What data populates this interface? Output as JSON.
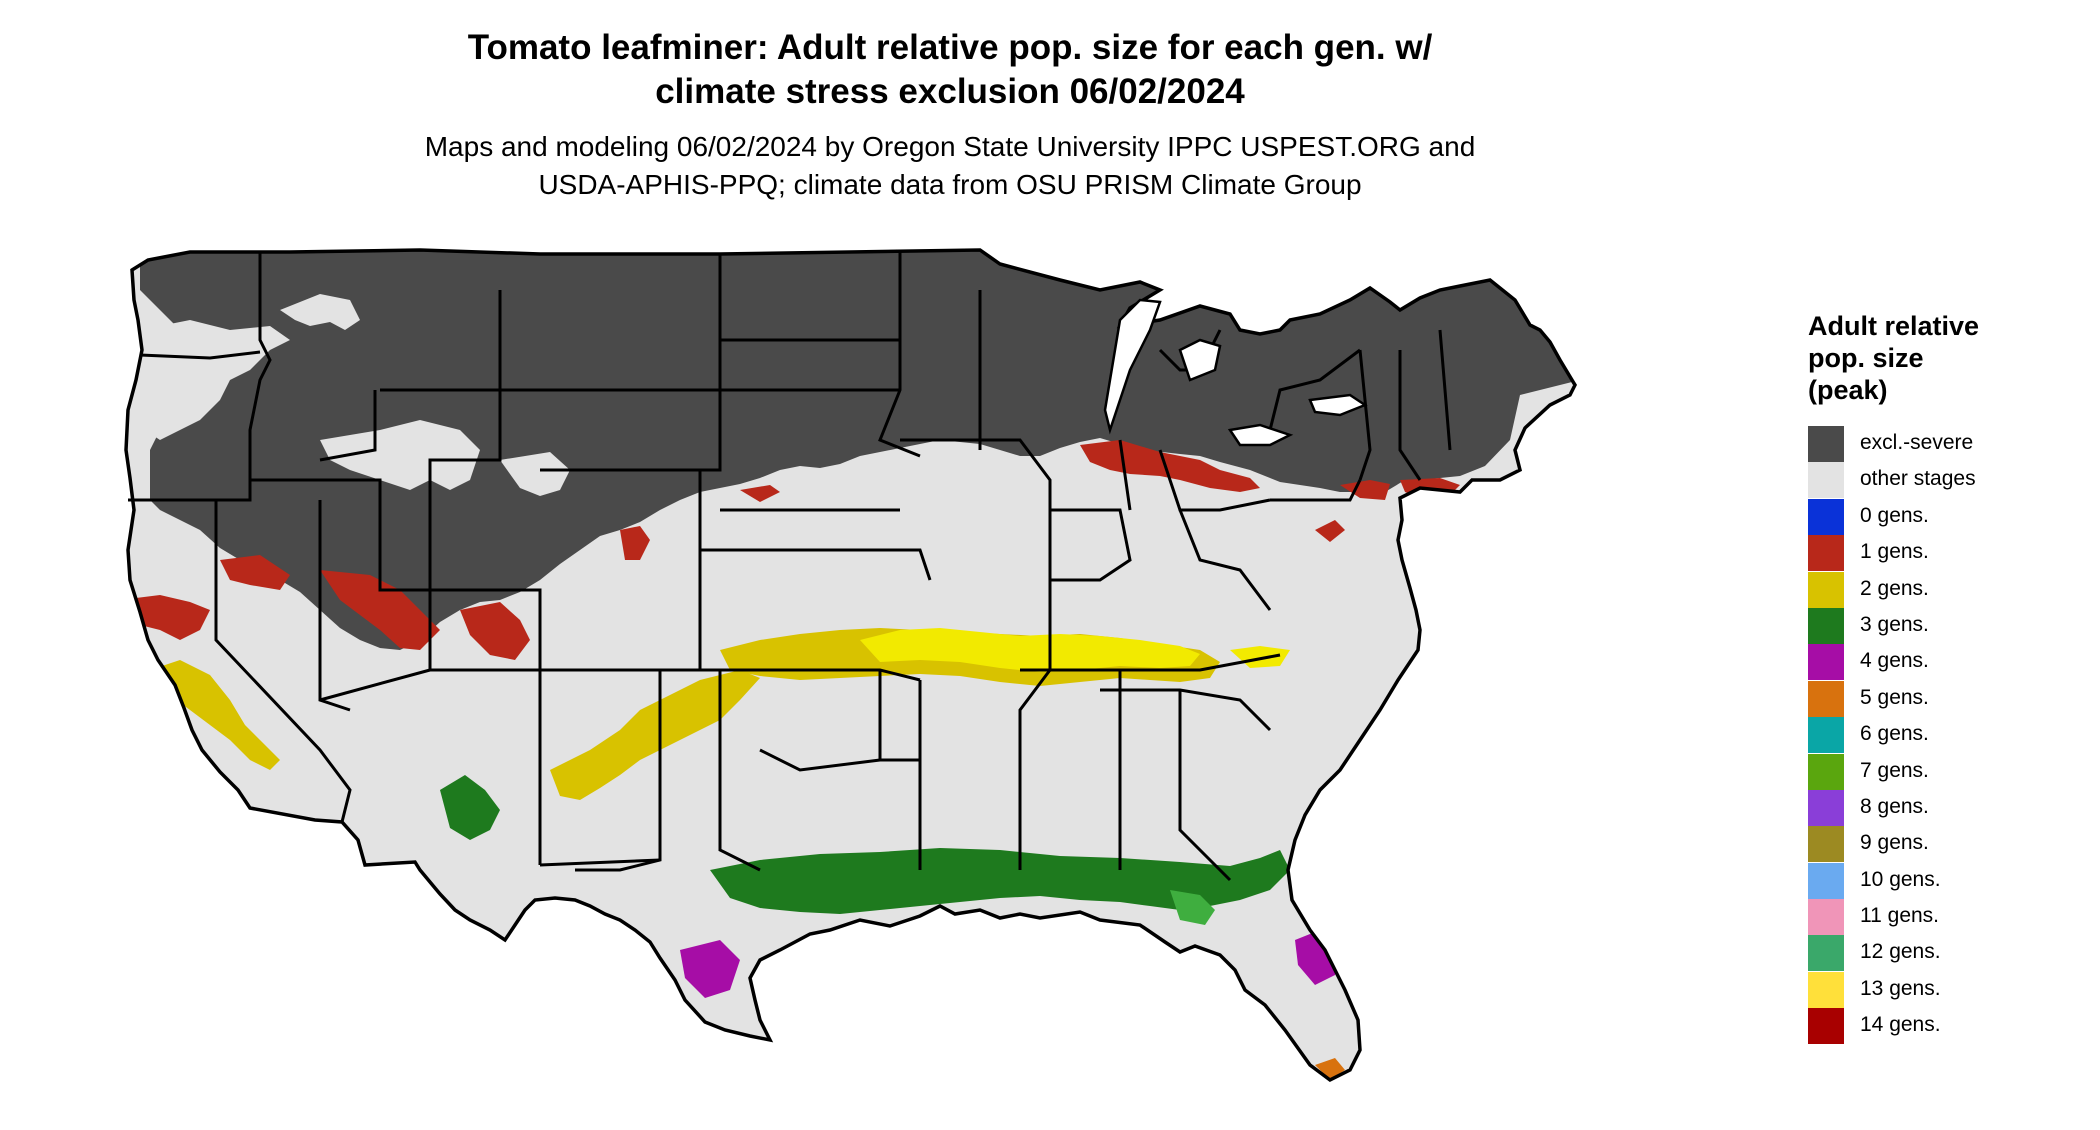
{
  "header": {
    "title": "Tomato leafminer: Adult relative pop. size for each gen. w/\nclimate stress exclusion 06/02/2024",
    "subtitle": "Maps and modeling 06/02/2024 by Oregon State University IPPC USPEST.ORG and\nUSDA-APHIS-PPQ; climate data from OSU PRISM Climate Group"
  },
  "legend": {
    "title": "Adult relative\npop. size\n(peak)",
    "items": [
      {
        "label": "excl.-severe",
        "color": "#4a4a4a"
      },
      {
        "label": "other stages",
        "color": "#e3e3e3"
      },
      {
        "label": "0 gens.",
        "color": "#0a32d8"
      },
      {
        "label": "1 gens.",
        "color": "#b8281a"
      },
      {
        "label": "2 gens.",
        "color": "#d8c200"
      },
      {
        "label": "3 gens.",
        "color": "#1e7a1e"
      },
      {
        "label": "4 gens.",
        "color": "#a60da6"
      },
      {
        "label": "5 gens.",
        "color": "#d8720e"
      },
      {
        "label": "6 gens.",
        "color": "#0aa6a6"
      },
      {
        "label": "7 gens.",
        "color": "#5aa60e"
      },
      {
        "label": "8 gens.",
        "color": "#8a3ed8"
      },
      {
        "label": "9 gens.",
        "color": "#9c8a22"
      },
      {
        "label": "10 gens.",
        "color": "#6aaaf0"
      },
      {
        "label": "11 gens.",
        "color": "#f095b8"
      },
      {
        "label": "12 gens.",
        "color": "#3aa86a"
      },
      {
        "label": "13 gens.",
        "color": "#ffe03a"
      },
      {
        "label": "14 gens.",
        "color": "#a80000"
      }
    ]
  },
  "map": {
    "colors": {
      "excluded": "#4a4a4a",
      "other": "#e3e3e3",
      "gen1": "#b8281a",
      "gen2": "#d8c200",
      "gen2_bright": "#f2ea00",
      "gen3": "#1e7a1e",
      "gen3_light": "#3fae3f",
      "gen4": "#a60da6",
      "gen5": "#d8720e",
      "border": "#000000"
    }
  }
}
